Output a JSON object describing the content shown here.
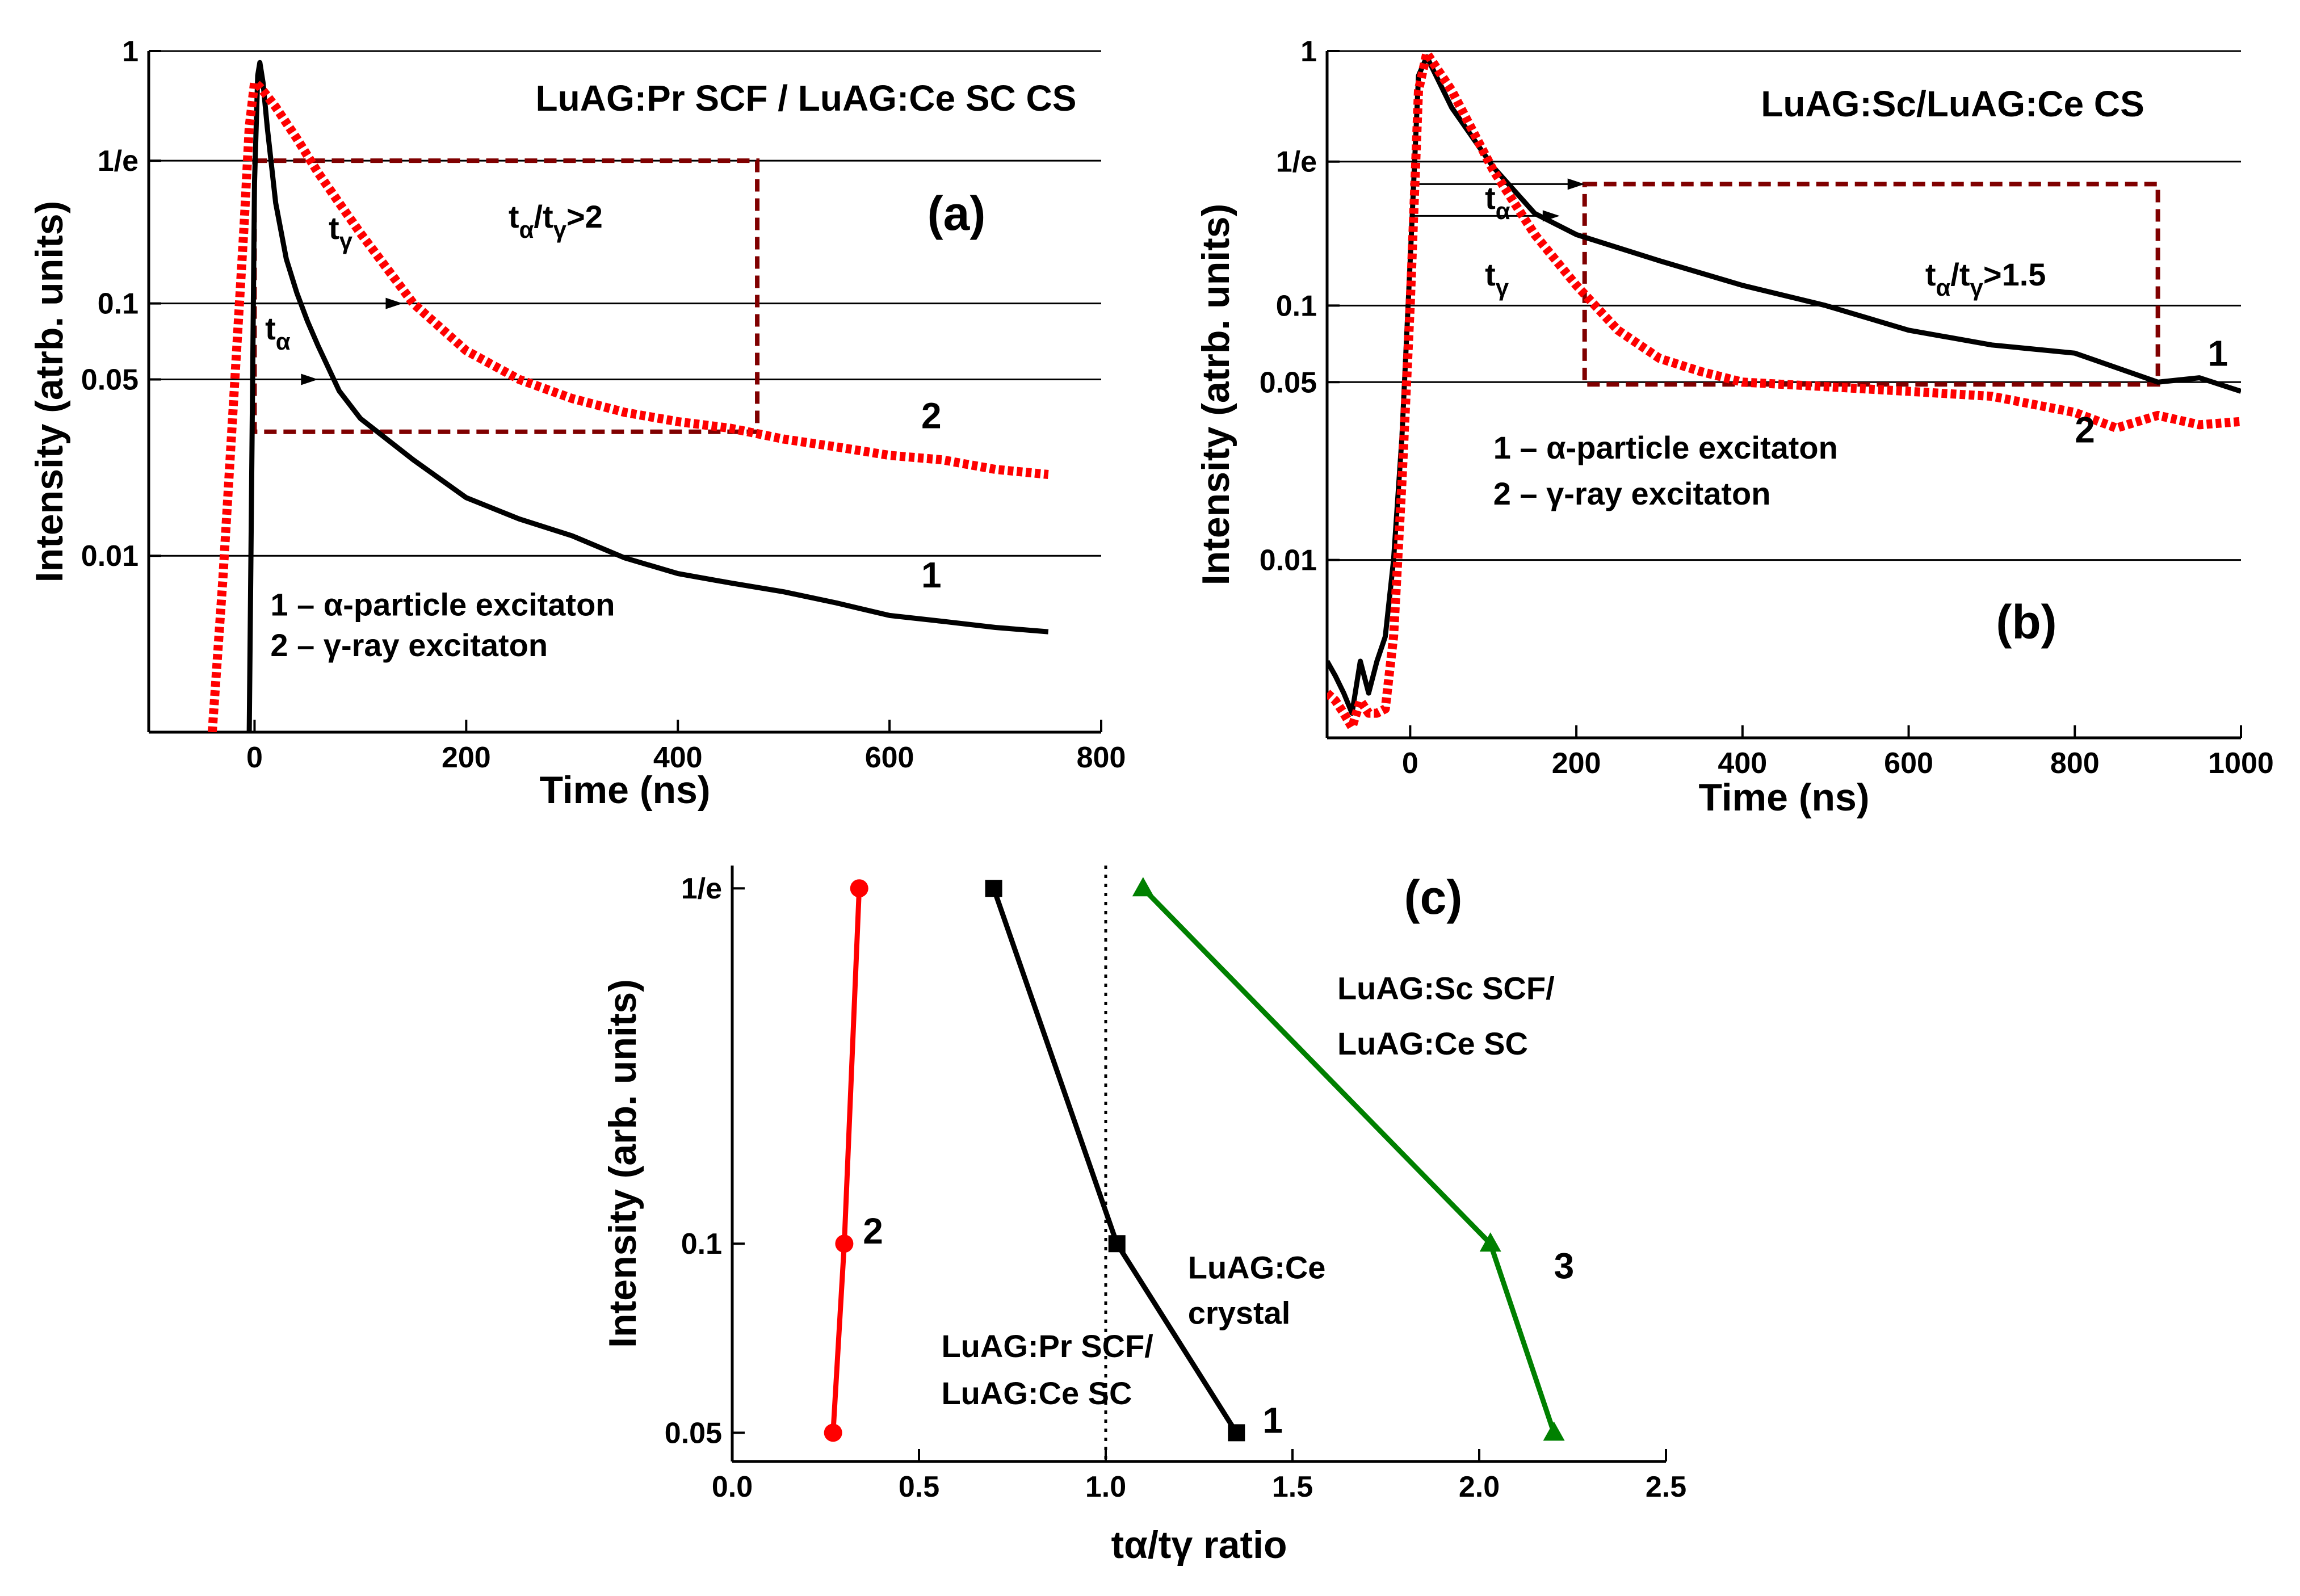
{
  "chart_data": [
    {
      "id": "a",
      "type": "line",
      "title": "LuAG:Pr SCF / LuAG:Ce SC CS",
      "panel_label": "(a)",
      "xlabel": "Time (ns)",
      "ylabel": "Intensity (atrb. units)",
      "xlim": [
        -100,
        800
      ],
      "ylim": [
        0.002,
        1
      ],
      "yscale": "log",
      "grid": "horizontal lines at y tick values",
      "xticks": [
        {
          "v": 0,
          "label": "0"
        },
        {
          "v": 200,
          "label": "200"
        },
        {
          "v": 400,
          "label": "400"
        },
        {
          "v": 600,
          "label": "600"
        },
        {
          "v": 800,
          "label": "800"
        }
      ],
      "yticks": [
        {
          "v": 1,
          "label": "1"
        },
        {
          "v": 0.3679,
          "label": "1/e"
        },
        {
          "v": 0.1,
          "label": "0.1"
        },
        {
          "v": 0.05,
          "label": "0.05"
        },
        {
          "v": 0.01,
          "label": "0.01"
        }
      ],
      "series": [
        {
          "name": "1",
          "color": "#000000",
          "style": "solid",
          "x": [
            -5,
            0,
            3,
            5,
            8,
            12,
            20,
            30,
            40,
            50,
            60,
            80,
            100,
            150,
            200,
            250,
            300,
            350,
            400,
            450,
            500,
            550,
            600,
            650,
            700,
            750
          ],
          "y": [
            0.002,
            0.3,
            0.8,
            0.9,
            0.75,
            0.5,
            0.25,
            0.15,
            0.11,
            0.085,
            0.068,
            0.045,
            0.035,
            0.024,
            0.017,
            0.014,
            0.012,
            0.0098,
            0.0085,
            0.0078,
            0.0072,
            0.0065,
            0.0058,
            0.0055,
            0.0052,
            0.005
          ]
        },
        {
          "name": "2",
          "color": "#ff0000",
          "style": "dotted",
          "x": [
            -40,
            -30,
            -20,
            -10,
            -5,
            0,
            5,
            10,
            20,
            40,
            60,
            80,
            100,
            150,
            200,
            250,
            300,
            350,
            400,
            450,
            500,
            550,
            600,
            650,
            700,
            750
          ],
          "y": [
            0.002,
            0.008,
            0.04,
            0.2,
            0.5,
            0.75,
            0.72,
            0.68,
            0.6,
            0.45,
            0.33,
            0.25,
            0.19,
            0.1,
            0.065,
            0.05,
            0.042,
            0.037,
            0.034,
            0.032,
            0.029,
            0.027,
            0.025,
            0.024,
            0.022,
            0.021
          ]
        }
      ],
      "annotations": [
        {
          "text": "t",
          "sub": "γ",
          "x": 70,
          "y": 0.18
        },
        {
          "text": "t",
          "sub": "α",
          "x": 10,
          "y": 0.072
        },
        {
          "text": "t",
          "sub": "α",
          "mid": "/t",
          "sub2": "γ",
          "tail": ">2",
          "x": 240,
          "y": 0.2
        },
        {
          "text": "1 – α-particle excitaton",
          "x": 15,
          "y": 0.0058
        },
        {
          "text": "2 – γ-ray excitaton",
          "x": 15,
          "y": 0.004
        }
      ],
      "series_labels": [
        {
          "text": "2",
          "x": 630,
          "y": 0.032
        },
        {
          "text": "1",
          "x": 630,
          "y": 0.0075
        }
      ],
      "dashed_box": {
        "x": [
          0,
          475
        ],
        "y": [
          0.031,
          0.3679
        ],
        "color": "#800000"
      },
      "arrows": [
        {
          "x0": 0,
          "x1": 140,
          "y": 0.1
        },
        {
          "x0": 0,
          "x1": 60,
          "y": 0.05
        }
      ]
    },
    {
      "id": "b",
      "type": "line",
      "title": "LuAG:Sc/LuAG:Ce CS",
      "panel_label": "(b)",
      "xlabel": "Time (ns)",
      "ylabel": "Intensity (atrb. units)",
      "xlim": [
        -100,
        1000
      ],
      "ylim": [
        0.002,
        1
      ],
      "yscale": "log",
      "grid": "horizontal lines at y tick values",
      "xticks": [
        {
          "v": 0,
          "label": "0"
        },
        {
          "v": 200,
          "label": "200"
        },
        {
          "v": 400,
          "label": "400"
        },
        {
          "v": 600,
          "label": "600"
        },
        {
          "v": 800,
          "label": "800"
        },
        {
          "v": 1000,
          "label": "1000"
        }
      ],
      "yticks": [
        {
          "v": 1,
          "label": "1"
        },
        {
          "v": 0.3679,
          "label": "1/e"
        },
        {
          "v": 0.1,
          "label": "0.1"
        },
        {
          "v": 0.05,
          "label": "0.05"
        },
        {
          "v": 0.01,
          "label": "0.01"
        }
      ],
      "series": [
        {
          "name": "1",
          "color": "#000000",
          "style": "solid",
          "x": [
            -100,
            -90,
            -80,
            -70,
            -60,
            -50,
            -40,
            -30,
            -20,
            -10,
            0,
            10,
            20,
            50,
            100,
            150,
            200,
            300,
            400,
            500,
            600,
            700,
            800,
            900,
            950,
            1000
          ],
          "y": [
            0.004,
            0.0035,
            0.003,
            0.0025,
            0.004,
            0.003,
            0.004,
            0.005,
            0.01,
            0.03,
            0.15,
            0.8,
            0.95,
            0.6,
            0.35,
            0.23,
            0.19,
            0.15,
            0.12,
            0.1,
            0.08,
            0.07,
            0.065,
            0.05,
            0.052,
            0.046
          ]
        },
        {
          "name": "2",
          "color": "#ff0000",
          "style": "dotted",
          "x": [
            -100,
            -90,
            -80,
            -70,
            -60,
            -50,
            -40,
            -30,
            -20,
            -10,
            0,
            10,
            20,
            50,
            100,
            150,
            200,
            250,
            300,
            350,
            400,
            500,
            600,
            700,
            800,
            850,
            900,
            950,
            1000
          ],
          "y": [
            0.003,
            0.0028,
            0.0025,
            0.0022,
            0.0028,
            0.0025,
            0.0025,
            0.0026,
            0.005,
            0.02,
            0.1,
            0.7,
            0.98,
            0.7,
            0.34,
            0.19,
            0.12,
            0.08,
            0.062,
            0.055,
            0.05,
            0.048,
            0.046,
            0.044,
            0.038,
            0.033,
            0.037,
            0.034,
            0.035
          ]
        }
      ],
      "annotations": [
        {
          "text": "t",
          "sub": "α",
          "x": 90,
          "y": 0.24
        },
        {
          "text": "t",
          "sub": "γ",
          "x": 90,
          "y": 0.12
        },
        {
          "text": "t",
          "sub": "α",
          "mid": "/t",
          "sub2": "γ",
          "tail": ">1.5",
          "x": 620,
          "y": 0.12
        },
        {
          "text": "1 – α-particle excitaton",
          "x": 100,
          "y": 0.025
        },
        {
          "text": "2 – γ-ray excitaton",
          "x": 100,
          "y": 0.0165
        }
      ],
      "series_labels": [
        {
          "text": "1",
          "x": 960,
          "y": 0.058
        },
        {
          "text": "2",
          "x": 800,
          "y": 0.029
        }
      ],
      "dashed_box": {
        "x": [
          210,
          900
        ],
        "y": [
          0.049,
          0.3
        ],
        "color": "#800000"
      },
      "arrows": [
        {
          "x0": 0,
          "x1": 210,
          "y": 0.3
        },
        {
          "x0": 0,
          "x1": 180,
          "y": 0.225
        }
      ]
    },
    {
      "id": "c",
      "type": "line",
      "panel_label": "(c)",
      "xlabel": "tα/tγ  ratio",
      "ylabel": "Intensity (arb. units)",
      "xlim": [
        0,
        2.5
      ],
      "ylim": [
        0.045,
        0.4
      ],
      "yscale": "log",
      "xticks": [
        {
          "v": 0,
          "label": "0.0"
        },
        {
          "v": 0.5,
          "label": "0.5"
        },
        {
          "v": 1,
          "label": "1.0"
        },
        {
          "v": 1.5,
          "label": "1.5"
        },
        {
          "v": 2,
          "label": "2.0"
        },
        {
          "v": 2.5,
          "label": "2.5"
        }
      ],
      "yticks": [
        {
          "v": 0.3679,
          "label": "1/e"
        },
        {
          "v": 0.1,
          "label": "0.1"
        },
        {
          "v": 0.05,
          "label": "0.05"
        }
      ],
      "reference_line": {
        "x": 1.0,
        "style": "dotted"
      },
      "series": [
        {
          "name": "2",
          "color": "#ff0000",
          "marker": "circle",
          "x": [
            0.27,
            0.3,
            0.34
          ],
          "y": [
            0.05,
            0.1,
            0.3679
          ]
        },
        {
          "name": "1",
          "color": "#000000",
          "marker": "square",
          "x": [
            1.35,
            1.03,
            0.7
          ],
          "y": [
            0.05,
            0.1,
            0.3679
          ]
        },
        {
          "name": "3",
          "color": "#008000",
          "marker": "triangle",
          "x": [
            2.2,
            2.03,
            1.1
          ],
          "y": [
            0.05,
            0.1,
            0.3679
          ]
        }
      ],
      "annotations": [
        {
          "text": "LuAG:Sc SCF/",
          "x": 1.62,
          "y": 0.245
        },
        {
          "text": "LuAG:Ce SC",
          "x": 1.62,
          "y": 0.2
        },
        {
          "text": "LuAG:Ce",
          "x": 1.22,
          "y": 0.088
        },
        {
          "text": "crystal",
          "x": 1.22,
          "y": 0.0745
        },
        {
          "text": "LuAG:Pr SCF/",
          "x": 0.56,
          "y": 0.066
        },
        {
          "text": "LuAG:Ce SC",
          "x": 0.56,
          "y": 0.0555
        }
      ],
      "series_labels": [
        {
          "text": "2",
          "x": 0.35,
          "y": 0.1
        },
        {
          "text": "1",
          "x": 1.42,
          "y": 0.05
        },
        {
          "text": "3",
          "x": 2.2,
          "y": 0.088
        }
      ]
    }
  ]
}
